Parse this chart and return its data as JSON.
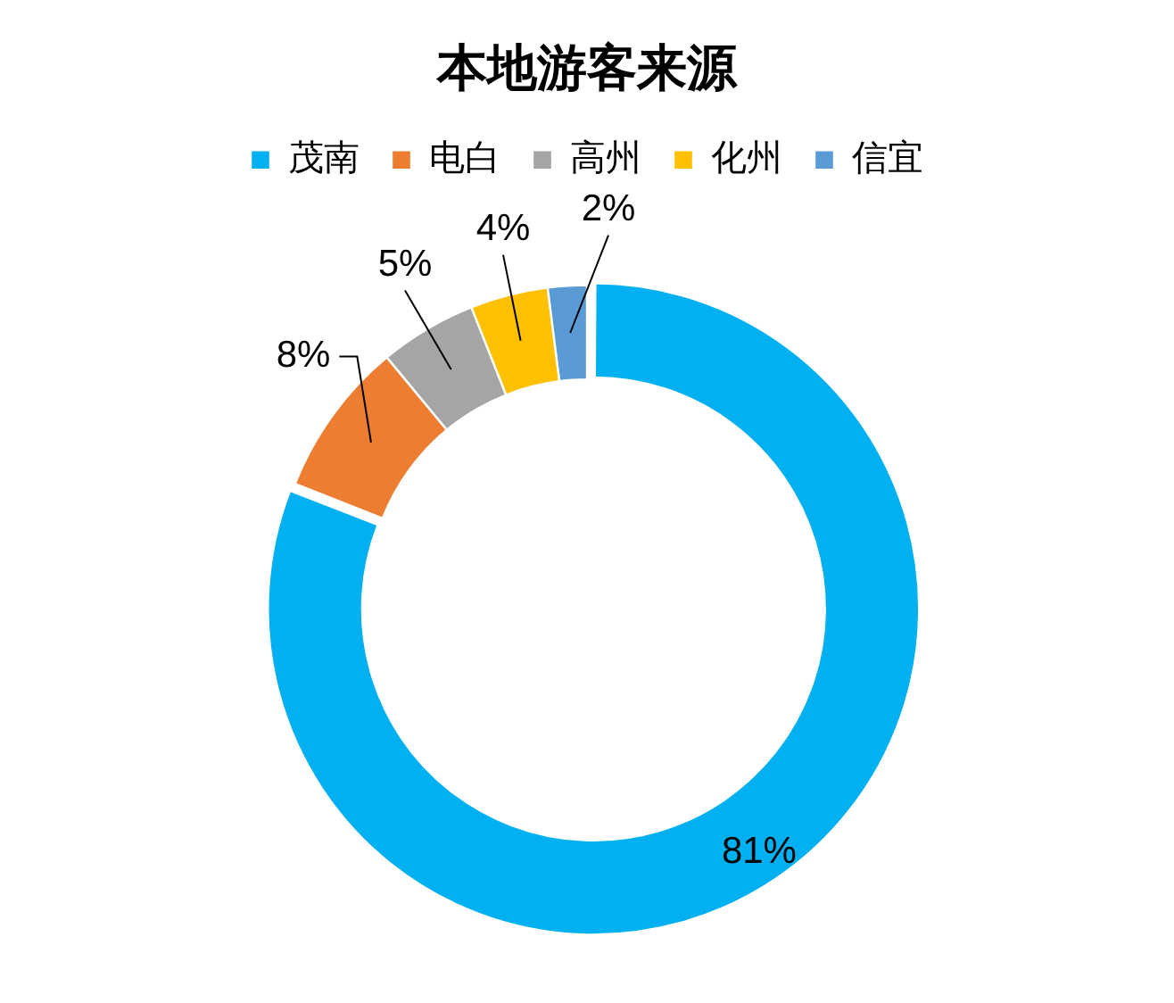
{
  "chart_data": {
    "type": "donut",
    "title": "本地游客来源",
    "categories": [
      "茂南",
      "电白",
      "高州",
      "化州",
      "信宜"
    ],
    "values": [
      81,
      8,
      5,
      4,
      2
    ],
    "colors": [
      "#00b0f0",
      "#ed7d31",
      "#a5a5a5",
      "#ffc000",
      "#5b9bd5"
    ],
    "value_labels": [
      "81%",
      "8%",
      "5%",
      "4%",
      "2%"
    ],
    "legend": "top"
  }
}
